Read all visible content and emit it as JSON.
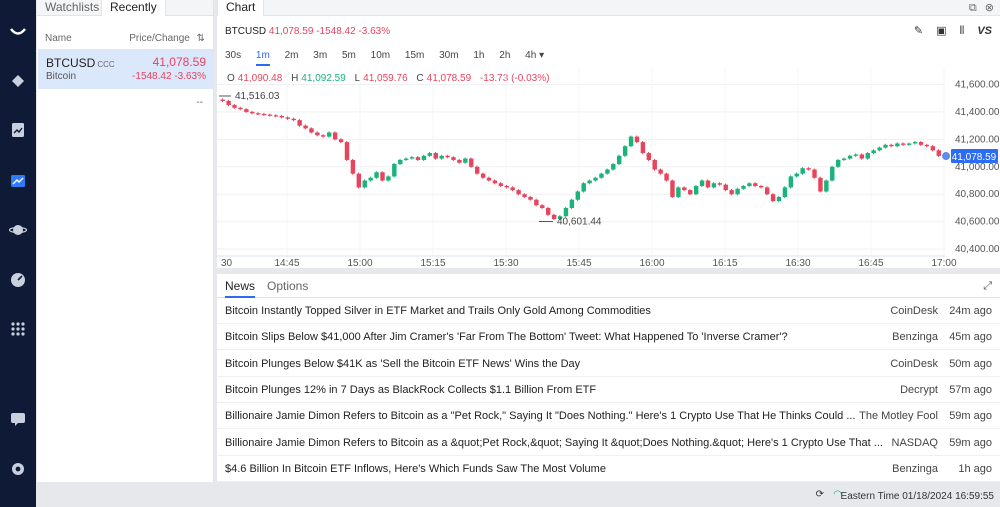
{
  "watchlist": {
    "tabs": [
      "Watchlists",
      "Recently"
    ],
    "col_name": "Name",
    "col_price": "Price/Change",
    "sort_icon": "⇅",
    "row": {
      "symbol": "BTCUSD",
      "tag": "CCC",
      "name": "Bitcoin",
      "price": "41,078.59",
      "change": "-1548.42",
      "pct": "-3.63%"
    },
    "more": "--"
  },
  "chart_panel": {
    "tab": "Chart",
    "symbol": "BTCUSD",
    "price": "41,078.59",
    "change": "-1548.42",
    "pct": "-3.63%",
    "intervals": [
      "30s",
      "1m",
      "2m",
      "3m",
      "5m",
      "10m",
      "15m",
      "30m",
      "1h",
      "2h",
      "4h ▾"
    ],
    "selected_interval": "1m",
    "ohlc": {
      "o_label": "O",
      "o": "41,090.48",
      "h_label": "H",
      "h": "41,092.59",
      "l_label": "L",
      "l": "41,059.76",
      "c_label": "C",
      "c": "41,078.59",
      "chg": "-13.73 (-0.03%)"
    },
    "tools": [
      "pencil-icon",
      "screenshot-icon",
      "candles-icon",
      "VS"
    ]
  },
  "chart_data": {
    "type": "candlestick",
    "x_ticks": [
      "30",
      "14:45",
      "15:00",
      "15:15",
      "15:30",
      "15:45",
      "16:00",
      "16:15",
      "16:30",
      "16:45",
      "17:00"
    ],
    "y_ticks": [
      "41,600.00",
      "41,400.00",
      "41,200.00",
      "41,000.00",
      "40,800.00",
      "40,600.00",
      "40,400.00"
    ],
    "ylim": [
      40350,
      41720
    ],
    "high_marker": "41,516.03",
    "low_marker": "40,601.44",
    "last_price": "41,078.59",
    "closes": [
      41480,
      41450,
      41430,
      41420,
      41400,
      41390,
      41385,
      41380,
      41375,
      41370,
      41360,
      41350,
      41340,
      41300,
      41280,
      41250,
      41230,
      41220,
      41250,
      41200,
      41180,
      41050,
      40950,
      40850,
      40900,
      40920,
      40960,
      40900,
      40930,
      41020,
      41050,
      41060,
      41070,
      41050,
      41080,
      41100,
      41060,
      41080,
      41070,
      41050,
      41030,
      41060,
      41000,
      40950,
      40920,
      40900,
      40880,
      40860,
      40850,
      40830,
      40800,
      40780,
      40760,
      40720,
      40700,
      40650,
      40620,
      40640,
      40700,
      40760,
      40820,
      40880,
      40900,
      40920,
      40950,
      40980,
      41020,
      41080,
      41150,
      41220,
      41180,
      41100,
      41050,
      40980,
      40950,
      40900,
      40780,
      40850,
      40830,
      40800,
      40860,
      40900,
      40850,
      40880,
      40870,
      40830,
      40800,
      40840,
      40860,
      40880,
      40860,
      40850,
      40800,
      40750,
      40780,
      40850,
      40930,
      40950,
      40990,
      40980,
      40920,
      40820,
      40900,
      41000,
      41050,
      41060,
      41080,
      41090,
      41060,
      41100,
      41120,
      41140,
      41160,
      41150,
      41170,
      41160,
      41170,
      41180,
      41160,
      41150,
      41120,
      41080
    ]
  },
  "news": {
    "tabs": [
      "News",
      "Options"
    ],
    "items": [
      {
        "title": "Bitcoin Instantly Topped Silver in ETF Market and Trails Only Gold Among Commodities",
        "source": "CoinDesk",
        "age": "24m ago"
      },
      {
        "title": "Bitcoin Slips Below $41,000 After Jim Cramer's 'Far From The Bottom' Tweet: What Happened To 'Inverse Cramer'?",
        "source": "Benzinga",
        "age": "45m ago"
      },
      {
        "title": "Bitcoin Plunges Below $41K as 'Sell the Bitcoin ETF News' Wins the Day",
        "source": "CoinDesk",
        "age": "50m ago"
      },
      {
        "title": "Bitcoin Plunges 12% in 7 Days as BlackRock Collects $1.1 Billion From ETF",
        "source": "Decrypt",
        "age": "57m ago"
      },
      {
        "title": "Billionaire Jamie Dimon Refers to Bitcoin as a \"Pet Rock,\" Saying It \"Does Nothing.\" Here's 1 Crypto Use That He Thinks Could ...",
        "source": "The Motley Fool",
        "age": "59m ago"
      },
      {
        "title": "Billionaire Jamie Dimon Refers to Bitcoin as a &quot;Pet Rock,&quot; Saying It &quot;Does Nothing.&quot; Here's 1 Crypto Use That ...",
        "source": "NASDAQ",
        "age": "59m ago"
      },
      {
        "title": "$4.6 Billion In Bitcoin ETF Inflows, Here's Which Funds Saw The Most Volume",
        "source": "Benzinga",
        "age": "1h ago"
      }
    ]
  },
  "status": {
    "time": "Eastern Time 01/18/2024 16:59:55"
  }
}
